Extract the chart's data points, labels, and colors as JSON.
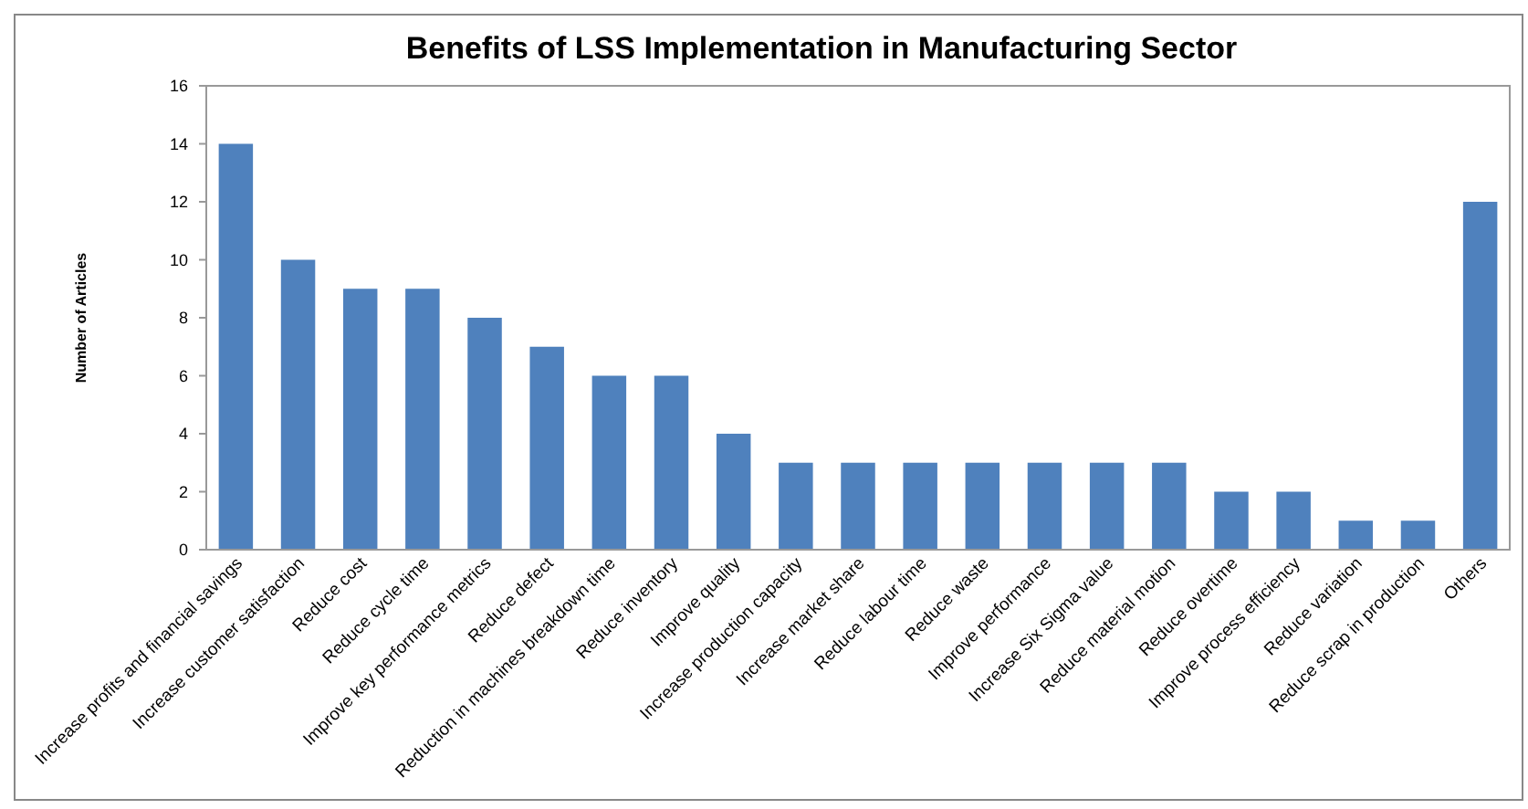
{
  "chart_data": {
    "type": "bar",
    "title": "Benefits of LSS Implementation in Manufacturing Sector",
    "ylabel": "Number of Articles",
    "categories": [
      "Increase profits and financial savings",
      "Increase customer satisfaction",
      "Reduce cost",
      "Reduce cycle time",
      "Improve key performance metrics",
      "Reduce defect",
      "Reduction in machines breakdown time",
      "Reduce inventory",
      "Improve quality",
      "Increase production capacity",
      "Increase market share",
      "Reduce labour time",
      "Reduce waste",
      "Improve performance",
      "Increase Six Sigma value",
      "Reduce material motion",
      "Reduce overtime",
      "Improve process efficiency",
      "Reduce variation",
      "Reduce scrap in production",
      "Others"
    ],
    "values": [
      14,
      10,
      9,
      9,
      8,
      7,
      6,
      6,
      4,
      3,
      3,
      3,
      3,
      3,
      3,
      3,
      2,
      2,
      1,
      1,
      12
    ],
    "color": "#4f81bd",
    "ylim": [
      0,
      16
    ],
    "yticks": [
      0,
      2,
      4,
      6,
      8,
      10,
      12,
      14,
      16
    ],
    "grid": false
  }
}
